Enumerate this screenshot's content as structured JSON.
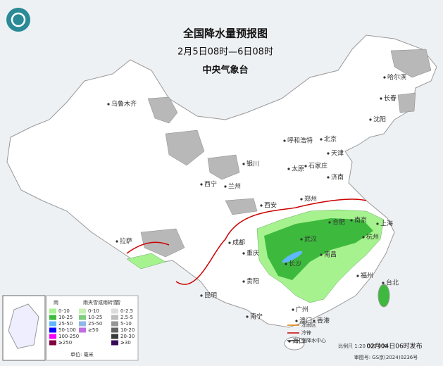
{
  "header": {
    "title": "全国降水量预报图",
    "period": "2月5日08时—6日08时",
    "agency": "中央气象台"
  },
  "cities": [
    "乌鲁木齐",
    "呼和浩特",
    "北京",
    "天津",
    "石家庄",
    "太原",
    "济南",
    "银川",
    "兰州",
    "西宁",
    "西安",
    "郑州",
    "合肥",
    "南京",
    "上海",
    "杭州",
    "武汉",
    "长沙",
    "南昌",
    "成都",
    "重庆",
    "贵阳",
    "昆明",
    "拉萨",
    "南宁",
    "广州",
    "澳门",
    "香港",
    "海口",
    "福州",
    "台北",
    "哈尔滨",
    "长春",
    "沈阳"
  ],
  "legend": {
    "rain": {
      "title": "雨",
      "items": [
        {
          "label": "0-10",
          "color": "#a6f28f"
        },
        {
          "label": "10-25",
          "color": "#3dba3d"
        },
        {
          "label": "25-50",
          "color": "#61b8ff"
        },
        {
          "label": "50-100",
          "color": "#0000fe"
        },
        {
          "label": "100-250",
          "color": "#fa00fa"
        },
        {
          "label": "≥250",
          "color": "#800040"
        }
      ]
    },
    "sleet": {
      "title": "雨夹雪或雨转雪",
      "items": [
        {
          "label": "0-10",
          "color": "#c8f0b4"
        },
        {
          "label": "10-25",
          "color": "#7fce7f"
        },
        {
          "label": "25-50",
          "color": "#8fb8e8"
        },
        {
          "label": "≥50",
          "color": "#c070e0"
        }
      ]
    },
    "snow": {
      "title": "雪",
      "items": [
        {
          "label": "0-2.5",
          "color": "#dcdcdc"
        },
        {
          "label": "2.5-5",
          "color": "#bdbdbd"
        },
        {
          "label": "5-10",
          "color": "#969696"
        },
        {
          "label": "10-20",
          "color": "#636363"
        },
        {
          "label": "20-30",
          "color": "#3a3a3a"
        },
        {
          "label": "≥30",
          "color": "#3a0a5a"
        }
      ]
    },
    "unit": "单位: 毫米",
    "symbols": [
      "冻雨区",
      "冷锋",
      "强降水中心"
    ]
  },
  "footer": {
    "scale": "比例尺 1:20 000 000",
    "approval": "审图号: GS京(2024)0236号",
    "issued": "02月04日06时发布"
  }
}
